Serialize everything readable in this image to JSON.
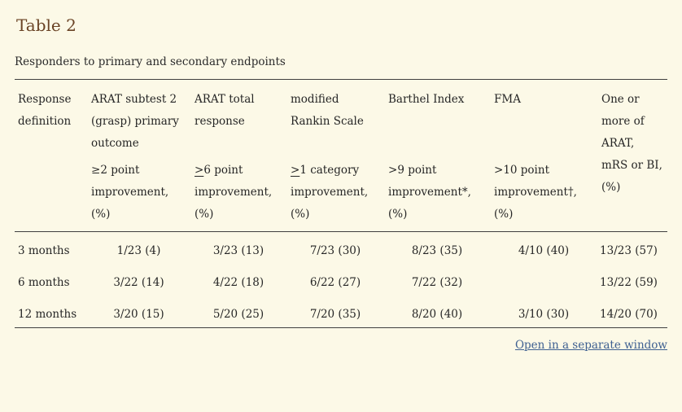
{
  "page": {
    "title": "Table 2",
    "caption": "Responders to primary and secondary endpoints",
    "open_link_label": "Open in a separate window"
  },
  "colors": {
    "background": "#fcf9e7",
    "title_brown": "#6a4325",
    "body_text": "#262626",
    "rule_lines": "#3f3f3f",
    "link_blue": "#3e6091"
  },
  "table": {
    "corner_header": "Response definition",
    "group_headers": [
      "ARAT subtest 2 (grasp) primary outcome",
      "ARAT total response",
      "modified Rankin Scale",
      "Barthel Index",
      "FMA"
    ],
    "last_header": "One or more of ARAT, mRS or BI, (%)",
    "sub_headers": [
      {
        "symbol": "≥",
        "underline": false,
        "text": "2 point improvement, (%)"
      },
      {
        "symbol": ">",
        "underline": true,
        "text": "6 point improvement, (%)"
      },
      {
        "symbol": ">",
        "underline": true,
        "text": "1 category improvement, (%)"
      },
      {
        "symbol": ">",
        "underline": false,
        "text": "9 point improvement*, (%)"
      },
      {
        "symbol": ">",
        "underline": false,
        "text": "10 point improvement†, (%)"
      }
    ],
    "rows": [
      {
        "label": "3 months",
        "cells": [
          "1/23 (4)",
          "3/23 (13)",
          "7/23 (30)",
          "8/23 (35)",
          "4/10 (40)",
          "13/23 (57)"
        ]
      },
      {
        "label": "6 months",
        "cells": [
          "3/22 (14)",
          "4/22 (18)",
          "6/22 (27)",
          "7/22 (32)",
          "",
          "13/22 (59)"
        ]
      },
      {
        "label": "12 months",
        "cells": [
          "3/20 (15)",
          "5/20 (25)",
          "7/20 (35)",
          "8/20 (40)",
          "3/10 (30)",
          "14/20 (70)"
        ]
      }
    ]
  }
}
